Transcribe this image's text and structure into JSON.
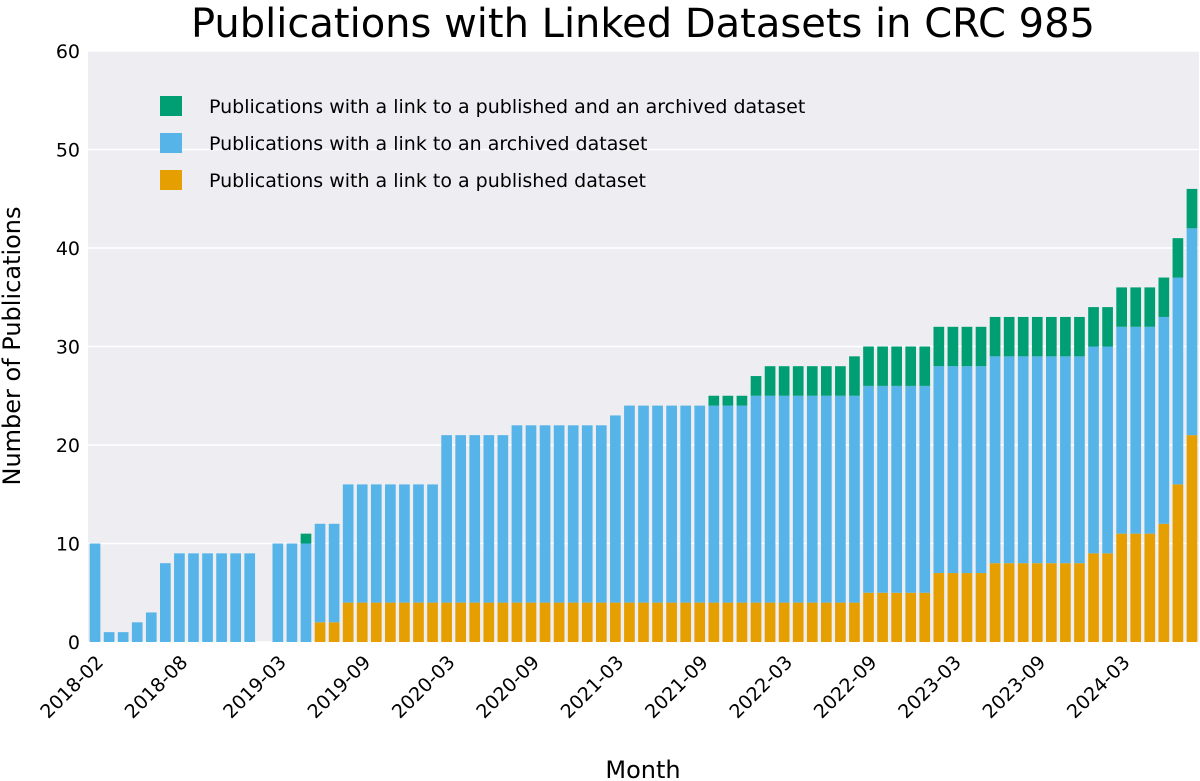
{
  "chart_data": {
    "type": "bar",
    "stacked": true,
    "title": "Publications with Linked Datasets in CRC 985",
    "xlabel": "Month",
    "ylabel": "Number of Publications",
    "ylim": [
      0,
      60
    ],
    "yticks": [
      0,
      10,
      20,
      30,
      40,
      50,
      60
    ],
    "grid": true,
    "legend_position": "top-left",
    "x_start": "2018-02",
    "xtick_labels": [
      "2018-02",
      "2018-08",
      "2019-03",
      "2019-09",
      "2020-03",
      "2020-09",
      "2021-03",
      "2021-09",
      "2022-03",
      "2022-09",
      "2023-03",
      "2023-09",
      "2024-03"
    ],
    "categories": [
      "2018-02",
      "2018-03",
      "2018-04",
      "2018-05",
      "2018-06",
      "2018-07",
      "2018-08",
      "2018-09",
      "2018-10",
      "2018-11",
      "2018-12",
      "2019-01",
      "2019-02",
      "2019-03",
      "2019-04",
      "2019-05",
      "2019-06",
      "2019-07",
      "2019-08",
      "2019-09",
      "2019-10",
      "2019-11",
      "2019-12",
      "2020-01",
      "2020-02",
      "2020-03",
      "2020-04",
      "2020-05",
      "2020-06",
      "2020-07",
      "2020-08",
      "2020-09",
      "2020-10",
      "2020-11",
      "2020-12",
      "2021-01",
      "2021-02",
      "2021-03",
      "2021-04",
      "2021-05",
      "2021-06",
      "2021-07",
      "2021-08",
      "2021-09",
      "2021-10",
      "2021-11",
      "2021-12",
      "2022-01",
      "2022-02",
      "2022-03",
      "2022-04",
      "2022-05",
      "2022-06",
      "2022-07",
      "2022-08",
      "2022-09",
      "2022-10",
      "2022-11",
      "2022-12",
      "2023-01",
      "2023-02",
      "2023-03",
      "2023-04",
      "2023-05",
      "2023-06",
      "2023-07",
      "2023-08",
      "2023-09",
      "2023-10",
      "2023-11",
      "2023-12",
      "2024-01",
      "2024-02",
      "2024-03",
      "2024-04",
      "2024-05",
      "2024-06",
      "2024-07",
      "2024-08"
    ],
    "series": [
      {
        "name": "Publications with a link to a published dataset",
        "color": "#E69F00",
        "values": [
          0,
          0,
          0,
          0,
          0,
          0,
          0,
          0,
          0,
          0,
          0,
          0,
          0,
          0,
          0,
          0,
          2,
          2,
          4,
          4,
          4,
          4,
          4,
          4,
          4,
          4,
          4,
          4,
          4,
          4,
          4,
          4,
          4,
          4,
          4,
          4,
          4,
          4,
          4,
          4,
          4,
          4,
          4,
          4,
          4,
          4,
          4,
          4,
          4,
          4,
          4,
          4,
          4,
          4,
          4,
          5,
          5,
          5,
          5,
          5,
          7,
          7,
          7,
          7,
          8,
          8,
          8,
          8,
          8,
          8,
          8,
          9,
          9,
          11,
          11,
          11,
          12,
          16,
          21
        ]
      },
      {
        "name": "Publications with a link to an archived dataset",
        "color": "#56B4E9",
        "values": [
          10,
          1,
          1,
          2,
          3,
          8,
          9,
          9,
          9,
          9,
          9,
          9,
          0,
          10,
          10,
          10,
          10,
          10,
          12,
          12,
          12,
          12,
          12,
          12,
          12,
          17,
          17,
          17,
          17,
          17,
          18,
          18,
          18,
          18,
          18,
          18,
          18,
          19,
          20,
          20,
          20,
          20,
          20,
          20,
          20,
          20,
          20,
          21,
          21,
          21,
          21,
          21,
          21,
          21,
          21,
          21,
          21,
          21,
          21,
          21,
          21,
          21,
          21,
          21,
          21,
          21,
          21,
          21,
          21,
          21,
          21,
          21,
          21,
          21,
          21,
          21,
          21,
          21,
          21
        ]
      },
      {
        "name": "Publications with a link to a published and an archived dataset",
        "color": "#009E73",
        "values": [
          0,
          0,
          0,
          0,
          0,
          0,
          0,
          0,
          0,
          0,
          0,
          0,
          0,
          0,
          0,
          1,
          0,
          0,
          0,
          0,
          0,
          0,
          0,
          0,
          0,
          0,
          0,
          0,
          0,
          0,
          0,
          0,
          0,
          0,
          0,
          0,
          0,
          0,
          0,
          0,
          0,
          0,
          0,
          0,
          1,
          1,
          1,
          2,
          3,
          3,
          3,
          3,
          3,
          3,
          4,
          4,
          4,
          4,
          4,
          4,
          4,
          4,
          4,
          4,
          4,
          4,
          4,
          4,
          4,
          4,
          4,
          4,
          4,
          4,
          4,
          4,
          4,
          4,
          4
        ]
      }
    ]
  }
}
